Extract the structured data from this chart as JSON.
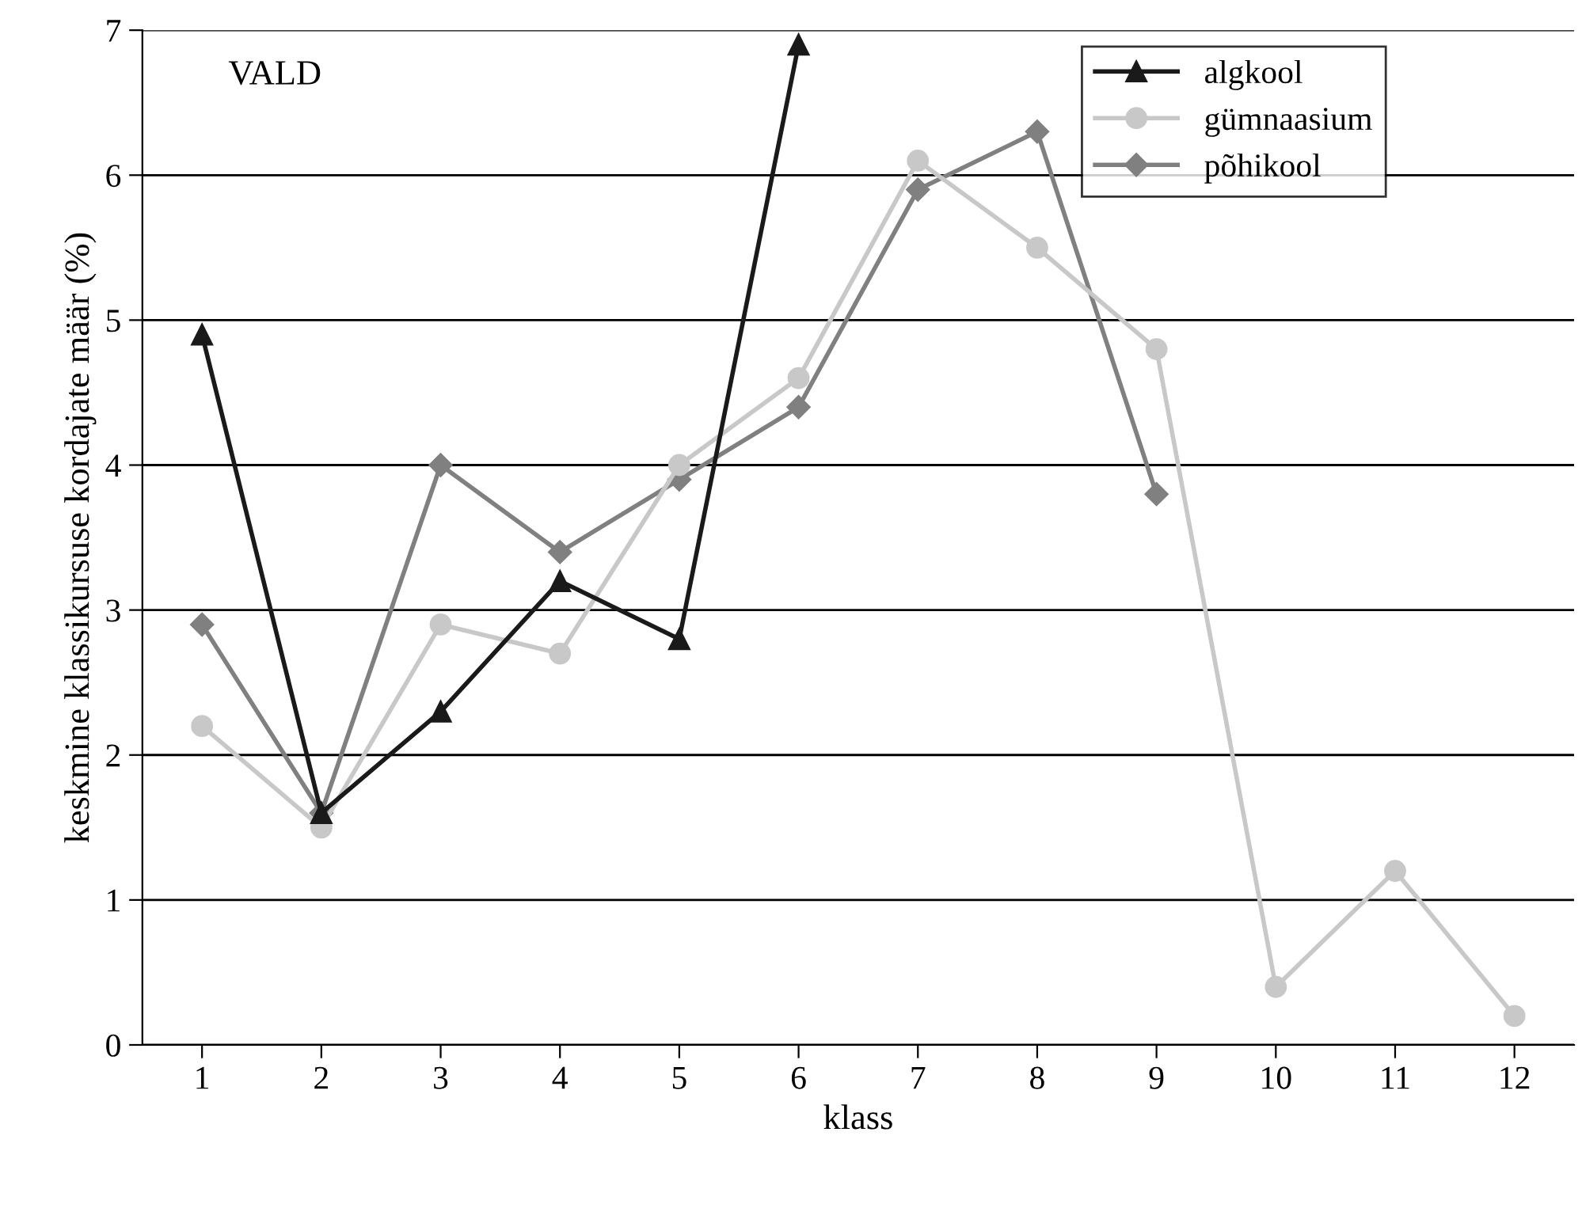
{
  "chart_data": {
    "type": "line",
    "xlabel": "klass",
    "ylabel": "keskmine klassikursuse kordajate määr (%)",
    "annotations": [
      "VALD"
    ],
    "categories": [
      "1",
      "2",
      "3",
      "4",
      "5",
      "6",
      "7",
      "8",
      "9",
      "10",
      "11",
      "12"
    ],
    "series": [
      {
        "name": "algkool",
        "color": "#1a1a1a",
        "marker": "triangle",
        "values": [
          4.9,
          1.6,
          2.3,
          3.2,
          2.8,
          6.9,
          null,
          null,
          null,
          null,
          null,
          null
        ]
      },
      {
        "name": "gümnaasium",
        "color": "#c8c8c8",
        "marker": "circle",
        "values": [
          2.2,
          1.5,
          2.9,
          2.7,
          4.0,
          4.6,
          6.1,
          5.5,
          4.8,
          0.4,
          1.2,
          0.2
        ]
      },
      {
        "name": "põhikool",
        "color": "#808080",
        "marker": "diamond",
        "values": [
          2.9,
          1.6,
          4.0,
          3.4,
          3.9,
          4.4,
          5.9,
          6.3,
          3.8,
          null,
          null,
          null
        ]
      }
    ],
    "ylim": [
      0,
      7
    ],
    "yticks": [
      0,
      1,
      2,
      3,
      4,
      5,
      6,
      7
    ],
    "grid": "y",
    "legend": "top right",
    "line_style": "solid"
  }
}
